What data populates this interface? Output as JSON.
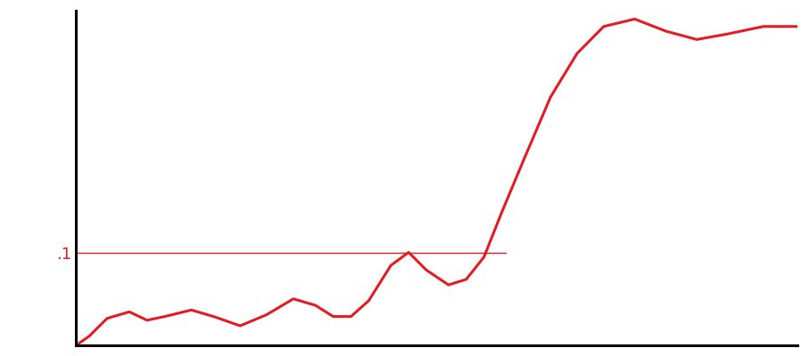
{
  "chart_data": {
    "type": "line",
    "x": [
      0,
      0.15,
      0.35,
      0.6,
      0.8,
      1.0,
      1.3,
      1.55,
      1.85,
      2.15,
      2.45,
      2.7,
      2.9,
      3.1,
      3.3,
      3.55,
      3.75,
      3.95,
      4.2,
      4.4,
      4.6,
      4.8,
      5.05,
      5.35,
      5.65,
      5.95,
      6.3,
      6.65,
      7.0,
      7.35,
      7.75,
      8.13
    ],
    "values": [
      0,
      0.01,
      0.029,
      0.036,
      0.027,
      0.031,
      0.038,
      0.031,
      0.021,
      0.033,
      0.05,
      0.043,
      0.031,
      0.031,
      0.048,
      0.086,
      0.1,
      0.081,
      0.065,
      0.071,
      0.095,
      0.143,
      0.2,
      0.267,
      0.314,
      0.343,
      0.351,
      0.338,
      0.329,
      0.335,
      0.343,
      0.343
    ],
    "color": "#e31b23",
    "reference_line": {
      "y": 0.1,
      "x": [
        0,
        4.85
      ],
      "color": "#e31b23"
    },
    "xlim": [
      0,
      8.13
    ],
    "ylim": [
      0,
      0.36
    ],
    "xticks": [],
    "yticks": [
      {
        "value": 0.1,
        "label": ".1"
      }
    ],
    "tick_labels": "y",
    "grid": false
  }
}
